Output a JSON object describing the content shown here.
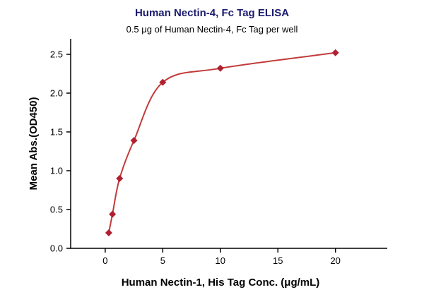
{
  "chart_data": {
    "type": "scatter",
    "title": "Human Nectin-4, Fc Tag ELISA",
    "subtitle": "0.5 μg of Human Nectin-4, Fc Tag per well",
    "xlabel": "Human Nectin-1, His Tag Conc. (μg/mL)",
    "ylabel": "Mean Abs.(OD450)",
    "x": [
      0.31,
      0.63,
      1.25,
      2.5,
      5,
      10,
      20
    ],
    "y": [
      0.2,
      0.44,
      0.9,
      1.39,
      2.14,
      2.32,
      2.52
    ],
    "xlim": [
      -3,
      24.5
    ],
    "ylim": [
      0,
      2.7
    ],
    "xticks": [
      0,
      5,
      10,
      15,
      20
    ],
    "yticks": [
      0.0,
      0.5,
      1.0,
      1.5,
      2.0,
      2.5
    ],
    "grid": false,
    "legend": "none",
    "marker": "diamond",
    "colors": {
      "line": "#c23b3b",
      "marker": "#b02030",
      "axis": "#000000",
      "title": "#1b1b6f",
      "text": "#000000"
    }
  }
}
